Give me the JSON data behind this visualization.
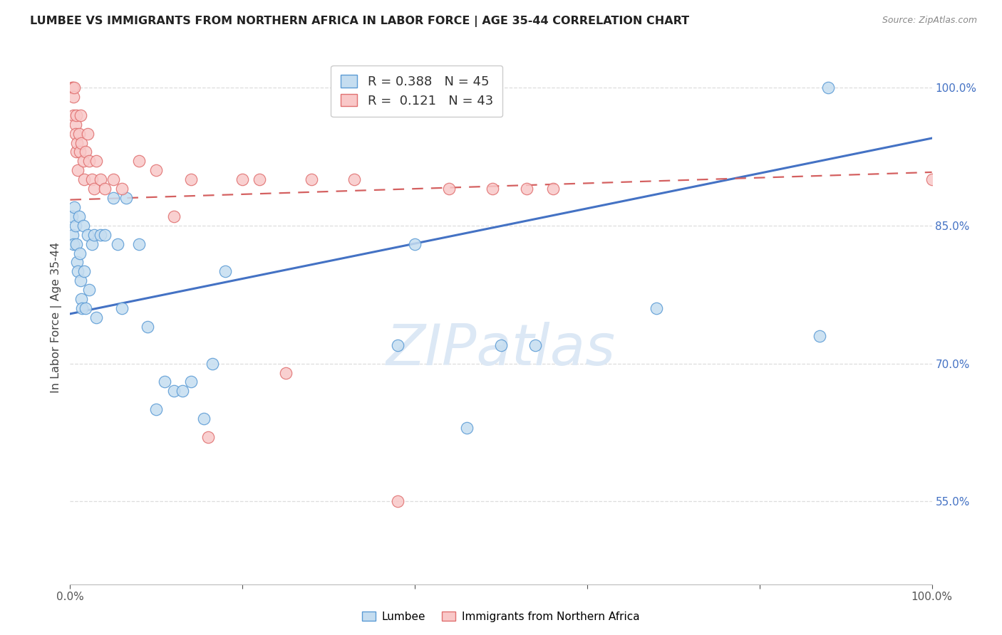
{
  "title": "LUMBEE VS IMMIGRANTS FROM NORTHERN AFRICA IN LABOR FORCE | AGE 35-44 CORRELATION CHART",
  "source": "Source: ZipAtlas.com",
  "ylabel": "In Labor Force | Age 35-44",
  "xlim": [
    0.0,
    1.0
  ],
  "ylim": [
    0.46,
    1.04
  ],
  "ytick_values": [
    0.55,
    0.7,
    0.85,
    1.0
  ],
  "ytick_labels": [
    "55.0%",
    "70.0%",
    "85.0%",
    "100.0%"
  ],
  "lumbee_color_face": "#c5ddf0",
  "lumbee_color_edge": "#5b9bd5",
  "immigrant_color_face": "#f9c8c8",
  "immigrant_color_edge": "#e07070",
  "blue_line_color": "#4472c4",
  "pink_line_color": "#d46060",
  "grid_color": "#dddddd",
  "watermark_color": "#dce8f5",
  "lumbee_x": [
    0.002,
    0.003,
    0.004,
    0.005,
    0.006,
    0.007,
    0.008,
    0.009,
    0.01,
    0.011,
    0.012,
    0.013,
    0.014,
    0.015,
    0.016,
    0.018,
    0.02,
    0.022,
    0.025,
    0.028,
    0.03,
    0.035,
    0.04,
    0.05,
    0.055,
    0.06,
    0.065,
    0.08,
    0.09,
    0.1,
    0.11,
    0.12,
    0.13,
    0.14,
    0.155,
    0.165,
    0.18,
    0.38,
    0.4,
    0.46,
    0.5,
    0.54,
    0.68,
    0.87,
    0.88
  ],
  "lumbee_y": [
    0.86,
    0.84,
    0.83,
    0.87,
    0.85,
    0.83,
    0.81,
    0.8,
    0.86,
    0.82,
    0.79,
    0.77,
    0.76,
    0.85,
    0.8,
    0.76,
    0.84,
    0.78,
    0.83,
    0.84,
    0.75,
    0.84,
    0.84,
    0.88,
    0.83,
    0.76,
    0.88,
    0.83,
    0.74,
    0.65,
    0.68,
    0.67,
    0.67,
    0.68,
    0.64,
    0.7,
    0.8,
    0.72,
    0.83,
    0.63,
    0.72,
    0.72,
    0.76,
    0.73,
    1.0
  ],
  "immigrant_x": [
    0.002,
    0.003,
    0.004,
    0.004,
    0.005,
    0.006,
    0.006,
    0.007,
    0.007,
    0.008,
    0.009,
    0.01,
    0.011,
    0.012,
    0.013,
    0.015,
    0.016,
    0.018,
    0.02,
    0.022,
    0.025,
    0.028,
    0.03,
    0.035,
    0.04,
    0.05,
    0.06,
    0.08,
    0.1,
    0.12,
    0.14,
    0.16,
    0.2,
    0.22,
    0.25,
    0.28,
    0.33,
    0.38,
    0.44,
    0.49,
    0.53,
    0.56,
    1.0
  ],
  "immigrant_y": [
    1.0,
    1.0,
    0.99,
    0.97,
    1.0,
    0.96,
    0.95,
    0.93,
    0.97,
    0.94,
    0.91,
    0.95,
    0.93,
    0.97,
    0.94,
    0.92,
    0.9,
    0.93,
    0.95,
    0.92,
    0.9,
    0.89,
    0.92,
    0.9,
    0.89,
    0.9,
    0.89,
    0.92,
    0.91,
    0.86,
    0.9,
    0.62,
    0.9,
    0.9,
    0.69,
    0.9,
    0.9,
    0.55,
    0.89,
    0.89,
    0.89,
    0.89,
    0.9
  ],
  "blue_line_x0": 0.0,
  "blue_line_y0": 0.754,
  "blue_line_x1": 1.0,
  "blue_line_y1": 0.945,
  "pink_line_x0": 0.0,
  "pink_line_y0": 0.878,
  "pink_line_x1": 1.0,
  "pink_line_y1": 0.908
}
